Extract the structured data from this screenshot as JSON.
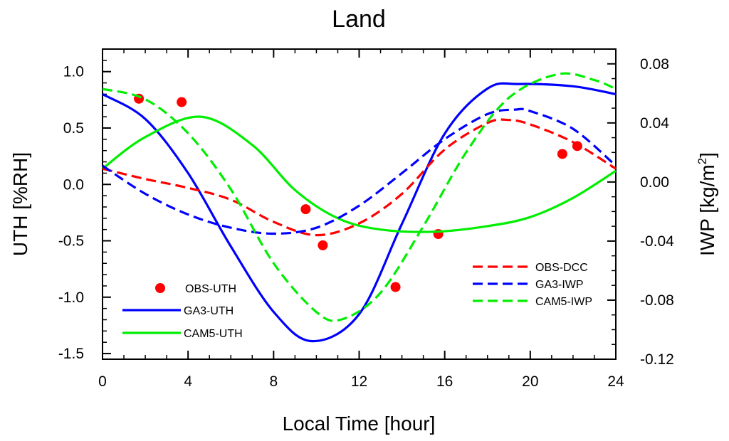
{
  "chart_data": {
    "type": "line",
    "title": "Land",
    "xlabel": "Local Time [hour]",
    "ylabel_left": "UTH [%RH]",
    "ylabel_right_prefix": "IWP [kg/m",
    "ylabel_right_sup": "2",
    "ylabel_right_suffix": "]",
    "xlim": [
      0,
      24
    ],
    "ylim_left": [
      -1.55,
      1.2
    ],
    "ylim_right": [
      -0.12,
      0.09
    ],
    "x_ticks": [
      0,
      4,
      8,
      12,
      16,
      20,
      24
    ],
    "x_tick_labels": [
      "0",
      "4",
      "8",
      "12",
      "16",
      "20",
      "24"
    ],
    "y_left_ticks": [
      1.0,
      0.5,
      0.0,
      -0.5,
      -1.0,
      -1.5
    ],
    "y_left_tick_labels": [
      "1.0",
      "0.5",
      "0.0",
      "-0.5",
      "-1.0",
      "-1.5"
    ],
    "y_right_ticks": [
      0.08,
      0.04,
      0.0,
      -0.04,
      -0.08,
      -0.12
    ],
    "y_right_tick_labels": [
      "0.08",
      "0.04",
      "0.00",
      "-0.04",
      "-0.08",
      "-0.12"
    ],
    "grid": false,
    "series": [
      {
        "name": "OBS-UTH",
        "axis": "left",
        "style": "marker",
        "color": "#ff0000",
        "x": [
          1.7,
          3.7,
          9.5,
          10.3,
          13.7,
          15.7,
          21.5,
          22.2
        ],
        "y": [
          0.76,
          0.73,
          -0.22,
          -0.54,
          -0.91,
          -0.44,
          0.27,
          0.34
        ]
      },
      {
        "name": "GA3-UTH",
        "axis": "left",
        "style": "solid",
        "color": "#0000ff",
        "x": [
          0,
          2,
          4,
          6,
          8,
          9.8,
          12,
          14,
          16,
          18,
          19.5,
          22,
          24
        ],
        "y": [
          0.8,
          0.58,
          0.1,
          -0.55,
          -1.13,
          -1.39,
          -1.15,
          -0.35,
          0.45,
          0.85,
          0.89,
          0.87,
          0.8
        ]
      },
      {
        "name": "CAM5-UTH",
        "axis": "left",
        "style": "solid",
        "color": "#00ee00",
        "x": [
          0,
          2,
          4.6,
          7,
          9,
          11,
          13,
          15.5,
          18,
          20,
          22,
          24
        ],
        "y": [
          0.14,
          0.42,
          0.6,
          0.35,
          -0.05,
          -0.3,
          -0.4,
          -0.42,
          -0.37,
          -0.29,
          -0.12,
          0.12
        ]
      },
      {
        "name": "OBS-DCC",
        "axis": "right",
        "style": "dashed",
        "color": "#ff0000",
        "x": [
          0,
          2,
          4,
          6,
          8,
          10,
          12,
          14,
          16,
          18,
          19,
          20,
          22,
          24
        ],
        "y": [
          0.009,
          0.002,
          -0.004,
          -0.012,
          -0.027,
          -0.036,
          -0.028,
          -0.008,
          0.022,
          0.04,
          0.042,
          0.039,
          0.027,
          0.009
        ]
      },
      {
        "name": "GA3-IWP",
        "axis": "right",
        "style": "dashed",
        "color": "#0000ff",
        "x": [
          0,
          2,
          4,
          6,
          8,
          10,
          12,
          14,
          16,
          18,
          19.3,
          20,
          22,
          24
        ],
        "y": [
          0.011,
          -0.008,
          -0.022,
          -0.031,
          -0.035,
          -0.031,
          -0.016,
          0.006,
          0.029,
          0.046,
          0.049,
          0.048,
          0.036,
          0.011
        ]
      },
      {
        "name": "CAM5-IWP",
        "axis": "right",
        "style": "dashed",
        "color": "#00ee00",
        "x": [
          0,
          2,
          4,
          6,
          8,
          10,
          11.2,
          13,
          15,
          17,
          19,
          21.3,
          23,
          24
        ],
        "y": [
          0.063,
          0.056,
          0.033,
          -0.005,
          -0.055,
          -0.088,
          -0.093,
          -0.075,
          -0.03,
          0.02,
          0.057,
          0.073,
          0.069,
          0.063
        ]
      }
    ],
    "legend": {
      "placement_left": "lower-left",
      "placement_right": "lower-right",
      "left_entries": [
        "OBS-UTH",
        "GA3-UTH",
        "CAM5-UTH"
      ],
      "right_entries": [
        "OBS-DCC",
        "GA3-IWP",
        "CAM5-IWP"
      ]
    }
  }
}
